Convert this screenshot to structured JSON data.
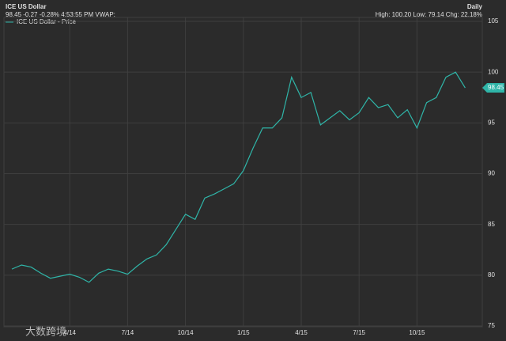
{
  "chart_data": {
    "type": "line",
    "title": "ICE US Dollar",
    "subtitle": "98.45 -0.27 -0.28% 4:53:55 PM VWAP:",
    "interval": "Daily",
    "stats": "High: 100.20 Low: 79.14 Chg: 22.18%",
    "watermark": "大数跨境",
    "last_price": 98.45,
    "categories": [
      null,
      null,
      null,
      null,
      null,
      null,
      "4/14",
      null,
      null,
      null,
      null,
      null,
      "7/14",
      null,
      null,
      null,
      null,
      null,
      "10/14",
      null,
      null,
      null,
      null,
      null,
      "1/15",
      null,
      null,
      null,
      null,
      null,
      "4/15",
      null,
      null,
      null,
      null,
      null,
      "7/15",
      null,
      null,
      null,
      null,
      null,
      "10/15",
      null,
      null,
      null,
      null,
      null
    ],
    "series": [
      {
        "name": "ICE US Dollar - Price",
        "color": "#2fb5a8",
        "values": [
          80.6,
          81.0,
          80.8,
          80.2,
          79.7,
          79.9,
          80.1,
          79.8,
          79.3,
          80.2,
          80.6,
          80.4,
          80.1,
          80.9,
          81.6,
          82.0,
          83.0,
          84.5,
          86.0,
          85.5,
          87.6,
          88.0,
          88.5,
          89.0,
          90.3,
          92.5,
          94.5,
          94.5,
          95.5,
          99.5,
          97.5,
          98.0,
          94.8,
          95.5,
          96.2,
          95.3,
          96.0,
          97.5,
          96.5,
          96.8,
          95.5,
          96.3,
          94.5,
          97.0,
          97.5,
          99.5,
          100.0,
          98.45
        ]
      }
    ],
    "ylim": [
      75,
      105
    ],
    "yticks": [
      75,
      80,
      85,
      90,
      95,
      100,
      105
    ],
    "grid": true
  }
}
